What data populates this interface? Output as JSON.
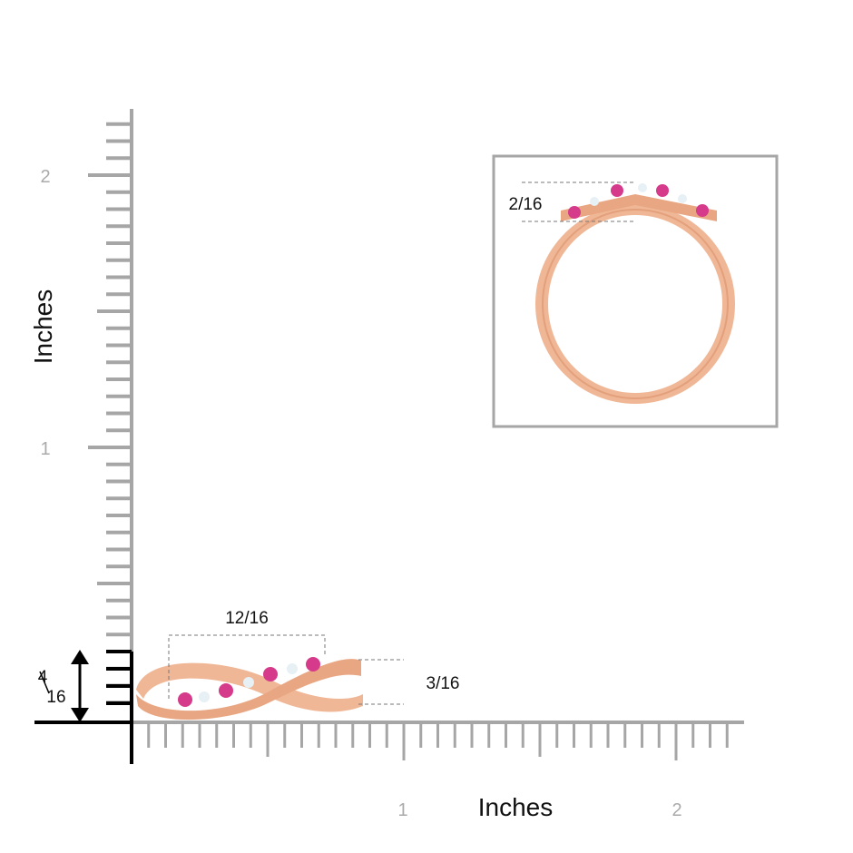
{
  "axes": {
    "y_label": "Inches",
    "x_label": "Inches",
    "y_ticks": [
      "1",
      "2"
    ],
    "x_ticks": [
      "1",
      "2"
    ]
  },
  "dimensions": {
    "width": "12/16",
    "height": "3/16",
    "top_view_height": "2/16",
    "total_height_numerator": "4",
    "total_height_denominator": "16"
  }
}
